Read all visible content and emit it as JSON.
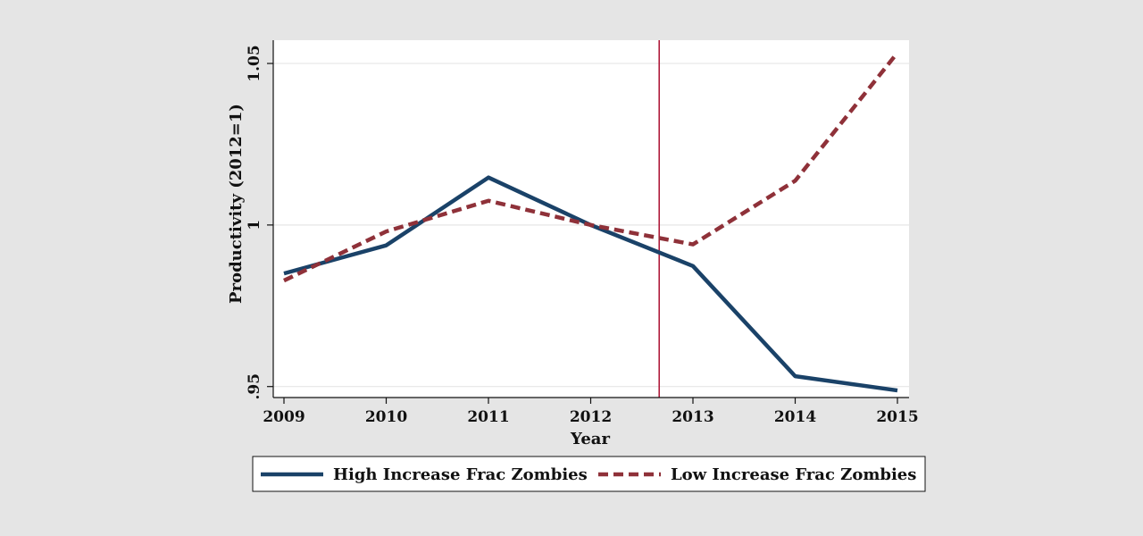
{
  "chart_data": {
    "type": "line",
    "x": [
      2009,
      2010,
      2011,
      2012,
      2013,
      2014,
      2015
    ],
    "series": [
      {
        "name": "High Increase Frac Zombies",
        "values": [
          0.985,
          0.9937,
          1.0147,
          1.0,
          0.9873,
          0.9532,
          0.9488
        ]
      },
      {
        "name": "Low Increase Frac Zombies",
        "values": [
          0.9828,
          0.998,
          1.0075,
          1.0,
          0.994,
          1.0137,
          1.0533
        ]
      }
    ],
    "xlabel": "Year",
    "ylabel": "Productivity (2012=1)",
    "xticks": [
      "2009",
      "2010",
      "2011",
      "2012",
      "2013",
      "2014",
      "2015"
    ],
    "yticks": [
      {
        "value": 0.95,
        "label": ".95"
      },
      {
        "value": 1.0,
        "label": "1"
      },
      {
        "value": 1.05,
        "label": "1.05"
      }
    ],
    "xlim": [
      2009,
      2015
    ],
    "ylim": [
      0.9466,
      1.0572
    ],
    "vline_x": 2012.67,
    "grid": "horizontal",
    "legend_position": "bottom",
    "colors": {
      "series_high": "#1a4268",
      "series_low": "#8f3139",
      "vline": "#b01c3c",
      "plot_bg": "#ffffff",
      "page_bg": "#e5e5e5",
      "grid": "#e6e6e6"
    }
  }
}
